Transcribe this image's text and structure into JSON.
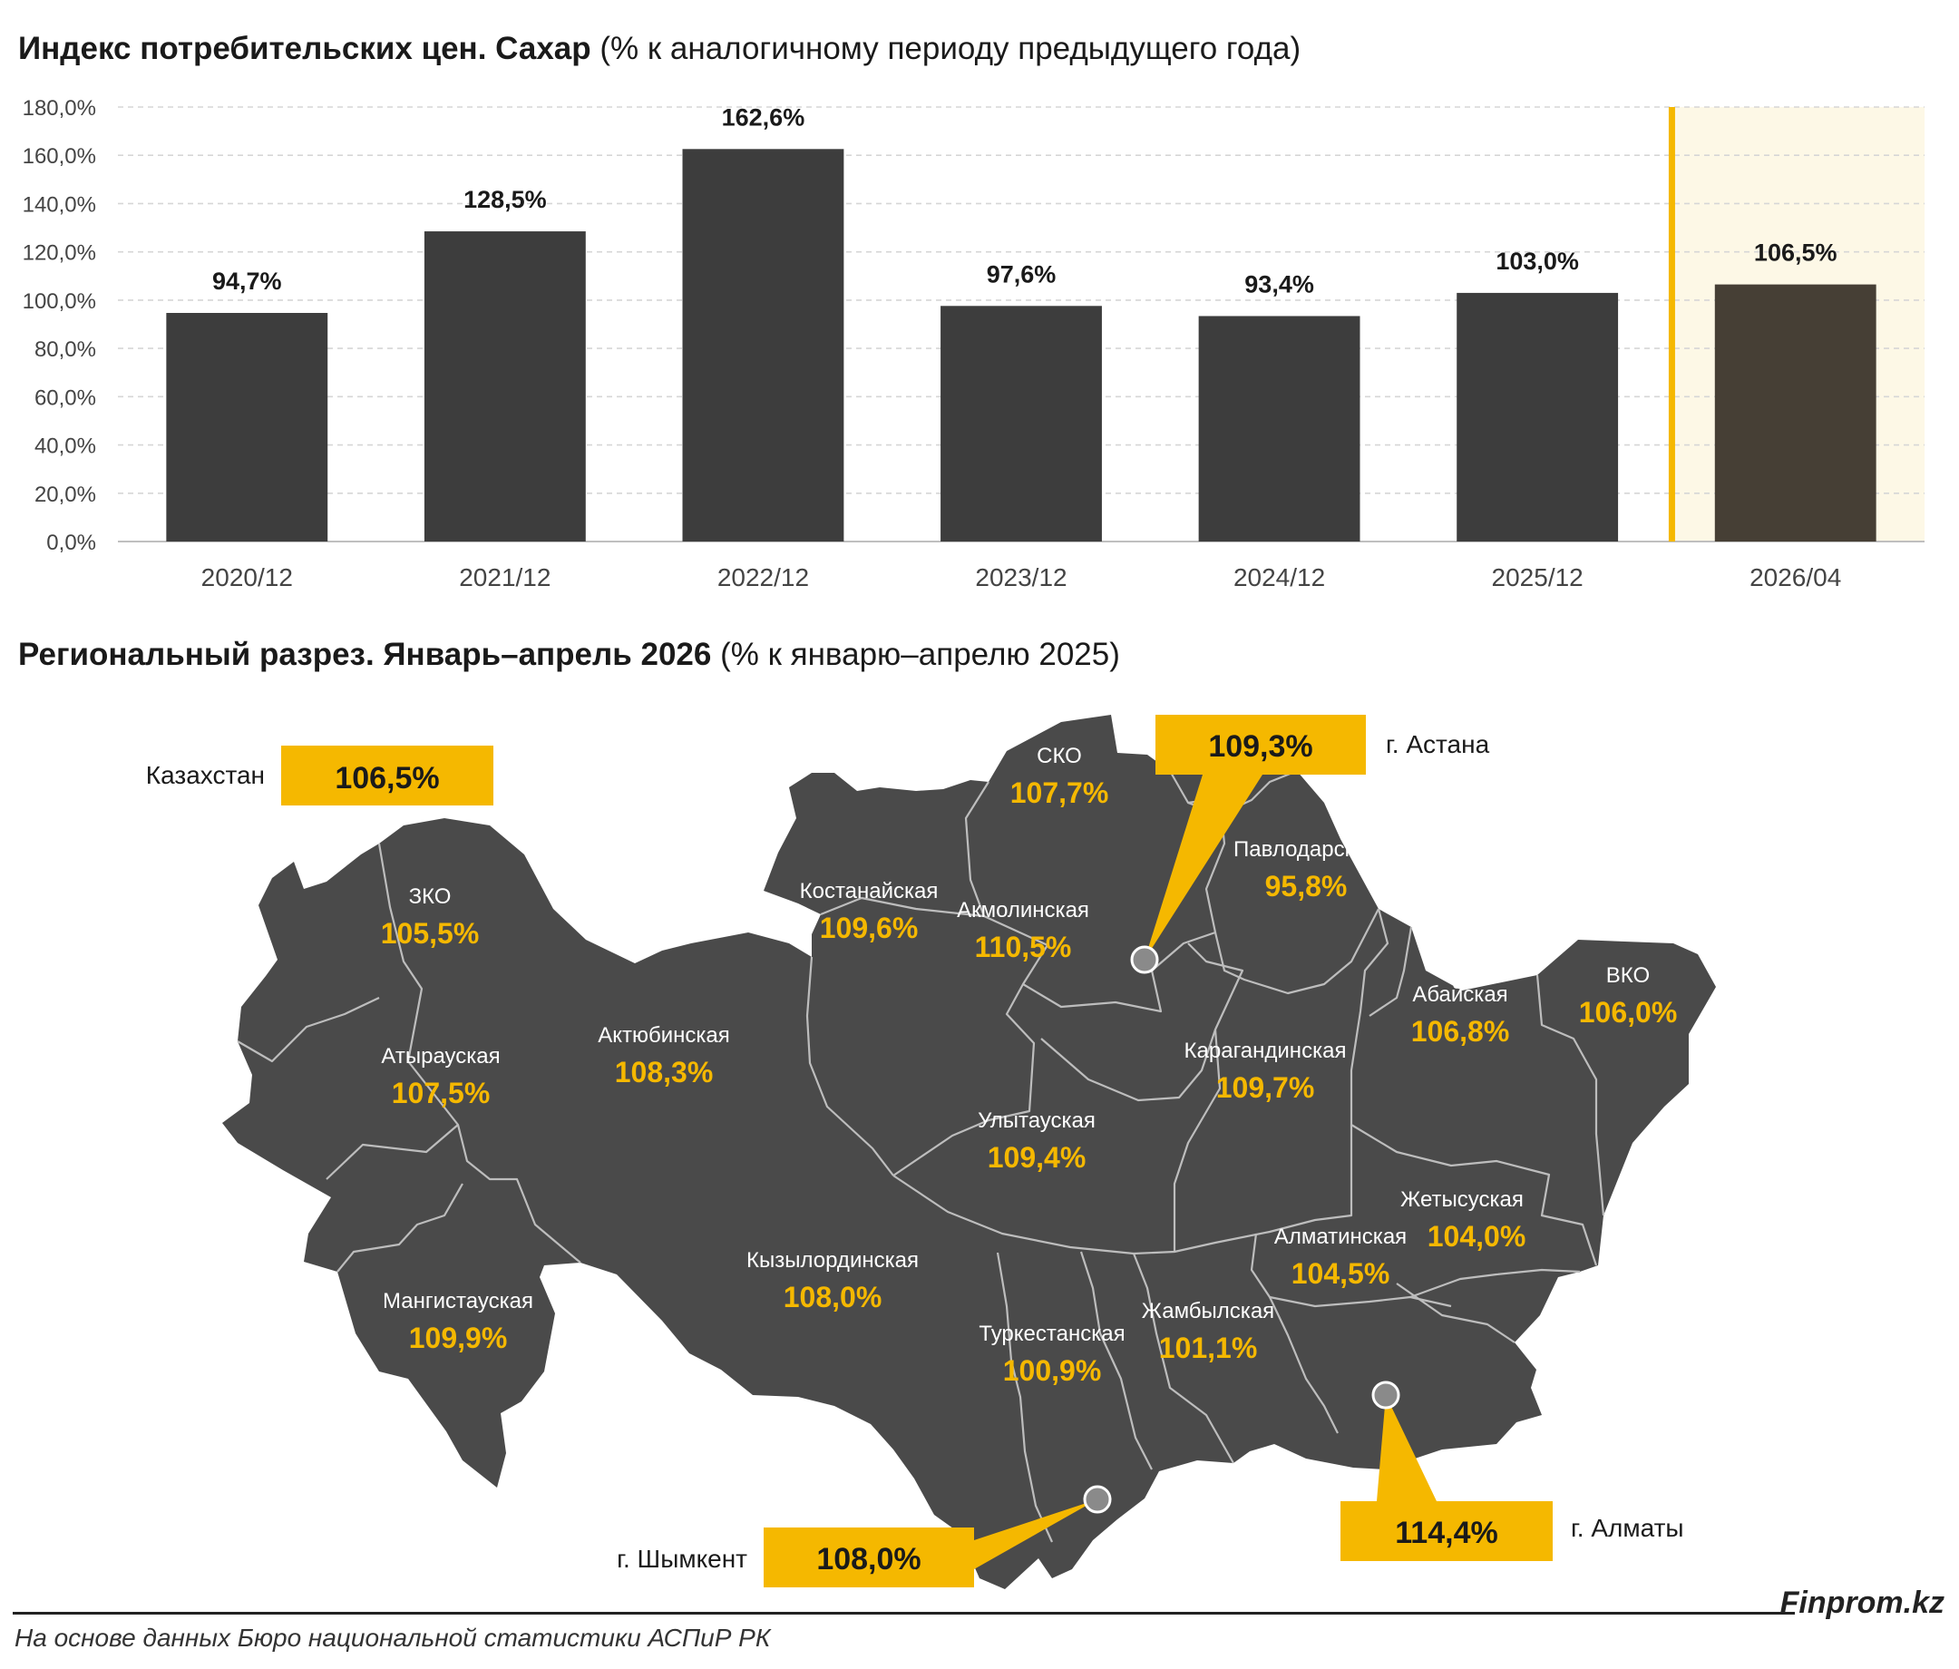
{
  "chart_data": [
    {
      "type": "bar",
      "title": "Индекс потребительских цен. Сахар",
      "subtitle": "(% к аналогичному периоду предыдущего года)",
      "categories": [
        "2020/12",
        "2021/12",
        "2022/12",
        "2023/12",
        "2024/12",
        "2025/12",
        "2026/04"
      ],
      "values": [
        94.7,
        128.5,
        162.6,
        97.6,
        93.4,
        103.0,
        106.5
      ],
      "value_labels": [
        "94,7%",
        "128,5%",
        "162,6%",
        "97,6%",
        "93,4%",
        "103,0%",
        "106,5%"
      ],
      "ylim": [
        0,
        180
      ],
      "yticks": [
        0,
        20,
        40,
        60,
        80,
        100,
        120,
        140,
        160,
        180
      ],
      "ytick_labels": [
        "0,0%",
        "20,0%",
        "40,0%",
        "60,0%",
        "80,0%",
        "100,0%",
        "120,0%",
        "140,0%",
        "160,0%",
        "180,0%"
      ],
      "grid": true,
      "highlight_category": "2026/04",
      "bar_color": "#3d3d3d",
      "highlight_bar_color": "#463f35",
      "highlight_bg_color": "#fdf8e6",
      "accent_color": "#f5b800"
    },
    {
      "type": "map",
      "title": "Региональный разрез. Январь–апрель 2026",
      "subtitle": "(% к январю–апрелю 2025)",
      "total": {
        "name": "Казахстан",
        "value": 106.5,
        "label": "106,5%"
      },
      "regions": [
        {
          "name": "ЗКО",
          "value": 105.5,
          "label": "105,5%"
        },
        {
          "name": "Атырауская",
          "value": 107.5,
          "label": "107,5%"
        },
        {
          "name": "Актюбинская",
          "value": 108.3,
          "label": "108,3%"
        },
        {
          "name": "Мангистауская",
          "value": 109.9,
          "label": "109,9%"
        },
        {
          "name": "Костанайская",
          "value": 109.6,
          "label": "109,6%"
        },
        {
          "name": "СКО",
          "value": 107.7,
          "label": "107,7%"
        },
        {
          "name": "Акмолинская",
          "value": 110.5,
          "label": "110,5%"
        },
        {
          "name": "Павлодарская",
          "value": 95.8,
          "label": "95,8%"
        },
        {
          "name": "Абайская",
          "value": 106.8,
          "label": "106,8%"
        },
        {
          "name": "ВКО",
          "value": 106.0,
          "label": "106,0%"
        },
        {
          "name": "Карагандинская",
          "value": 109.7,
          "label": "109,7%"
        },
        {
          "name": "Улытауская",
          "value": 109.4,
          "label": "109,4%"
        },
        {
          "name": "Кызылординская",
          "value": 108.0,
          "label": "108,0%"
        },
        {
          "name": "Туркестанская",
          "value": 100.9,
          "label": "100,9%"
        },
        {
          "name": "Жамбылская",
          "value": 101.1,
          "label": "101,1%"
        },
        {
          "name": "Алматинская",
          "value": 104.5,
          "label": "104,5%"
        },
        {
          "name": "Жетысуская",
          "value": 104.0,
          "label": "104,0%"
        }
      ],
      "cities": [
        {
          "name": "г. Астана",
          "value": 109.3,
          "label": "109,3%"
        },
        {
          "name": "г. Алматы",
          "value": 114.4,
          "label": "114,4%"
        },
        {
          "name": "г. Шымкент",
          "value": 108.0,
          "label": "108,0%"
        }
      ],
      "map_color": "#4a4a4a",
      "label_color": "#f5b800",
      "callout_color": "#f5b800"
    }
  ],
  "footer": {
    "source": "На основе данных Бюро национальной статистики АСПиР РК",
    "brand": "Finprom.kz"
  }
}
